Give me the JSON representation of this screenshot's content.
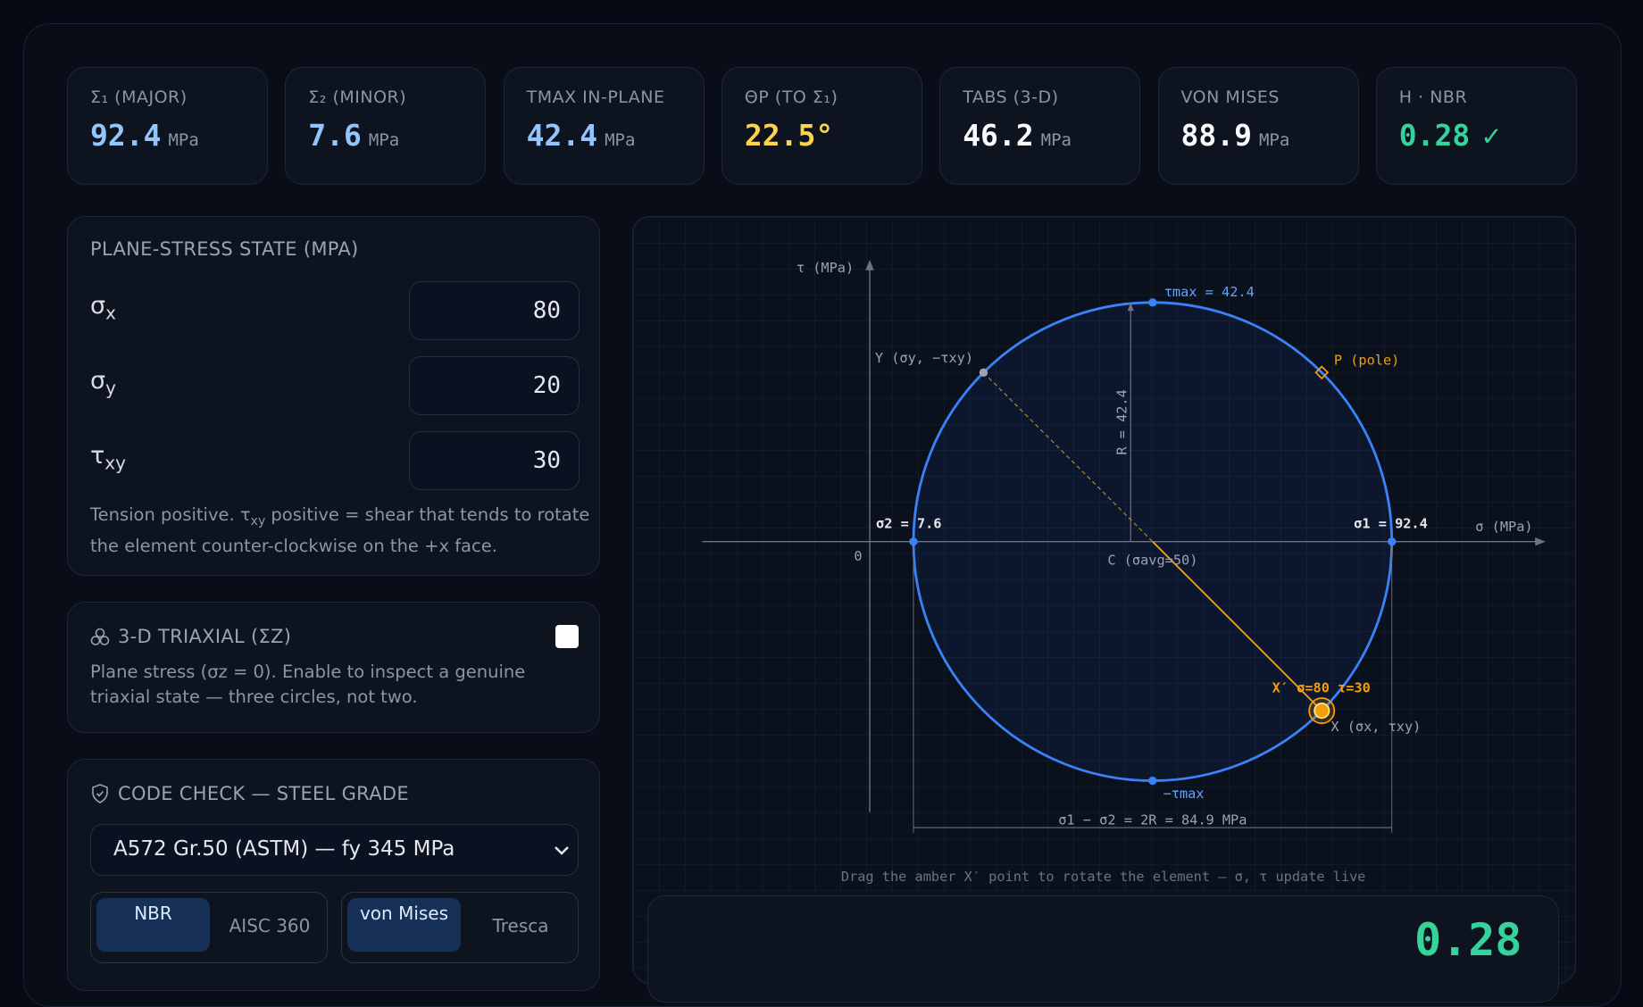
{
  "stats": [
    {
      "label": "Σ₁ (MAJOR)",
      "value": "92.4",
      "unit": "MPa"
    },
    {
      "label": "Σ₂ (MINOR)",
      "value": "7.6",
      "unit": "MPa"
    },
    {
      "label": "TMAX IN-PLANE",
      "value": "42.4",
      "unit": "MPa"
    },
    {
      "label": "ΘP (TO Σ₁)",
      "value": "22.5°"
    },
    {
      "label": "TABS (3-D)",
      "value": "46.2",
      "unit": "MPa"
    },
    {
      "label": "VON MISES",
      "value": "88.9",
      "unit": "MPa"
    },
    {
      "label": "H · NBR",
      "value": "0.28",
      "mark": "✓"
    }
  ],
  "stress_panel": {
    "title": "PLANE-STRESS STATE (MPA)",
    "inputs": [
      {
        "symbol": "σ",
        "sub": "x",
        "value": 80
      },
      {
        "symbol": "σ",
        "sub": "y",
        "value": 20
      },
      {
        "symbol": "τ",
        "sub": "xy",
        "value": 30
      }
    ],
    "note": {
      "pre": "Tension positive. τ",
      "sub": "xy",
      "post": " positive = shear that tends to rotate the element counter-clockwise on the +x face."
    }
  },
  "triaxial": {
    "title": "3-D TRIAXIAL (ΣZ)",
    "text": "Plane stress (σz = 0). Enable to inspect a genuine triaxial state — three circles, not two."
  },
  "code_check": {
    "title": "CODE CHECK — STEEL GRADE",
    "grade": "A572 Gr.50 (ASTM) — fy 345 MPa",
    "codes": [
      "NBR",
      "AISC 360"
    ],
    "criteria": [
      "von Mises",
      "Tresca"
    ]
  },
  "mohr": {
    "axis_sigma": "σ (MPa)",
    "axis_tau": "τ (MPa)",
    "origin": "0",
    "tau_max": "τmax = 42.4",
    "tau_min": "−τmax",
    "radius": "R = 42.4",
    "pole": "P (pole)",
    "y_point": "Y (σy, −τxy)",
    "x_point": "X (σx, τxy)",
    "sigma1": "σ1 = 92.4",
    "sigma2": "σ2 = 7.6",
    "center": "C (σavg=50)",
    "handle": "X′ σ=80 τ=30",
    "span": "σ1 − σ2 = 2R = 84.9 MPa",
    "caption": "Drag the amber X′ point to rotate the element — σ, τ update live"
  },
  "result": {
    "value": "0.28"
  }
}
